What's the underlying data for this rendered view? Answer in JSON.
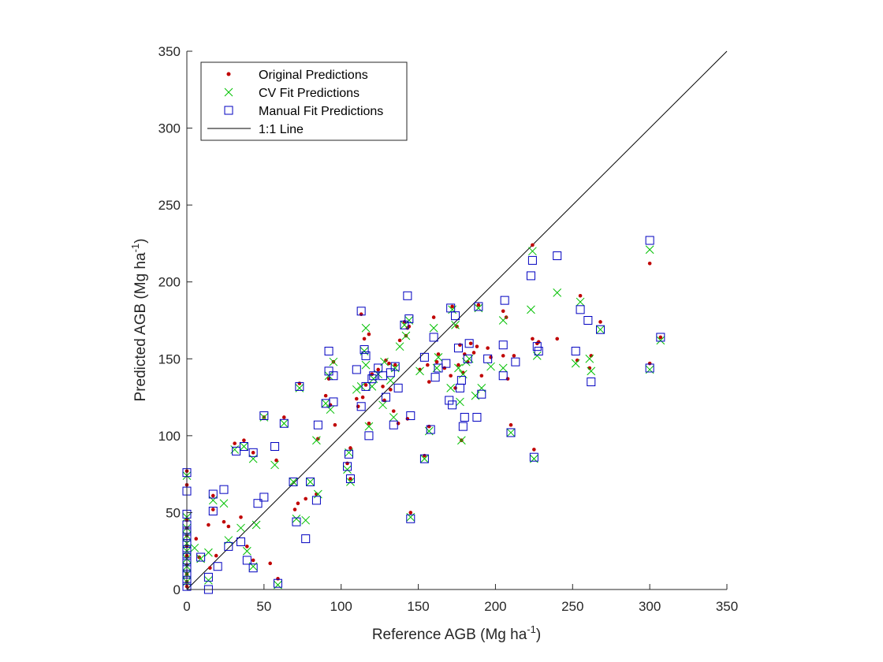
{
  "chart_data": {
    "type": "scatter",
    "title": "",
    "xlabel_main": "Reference AGB (Mg ha",
    "xlabel_sup": "-1",
    "xlabel_end": ")",
    "ylabel_main": "Predicted AGB (Mg ha",
    "ylabel_sup": "-1",
    "ylabel_end": ")",
    "xlim": [
      0,
      350
    ],
    "ylim": [
      0,
      350
    ],
    "xticks": [
      "0",
      "50",
      "100",
      "150",
      "200",
      "250",
      "300",
      "350"
    ],
    "yticks": [
      "0",
      "50",
      "100",
      "150",
      "200",
      "250",
      "300",
      "350"
    ],
    "grid": false,
    "legend_position": "top-left",
    "series": [
      {
        "name": "Original Predictions",
        "marker": "dot",
        "color": "#c00000",
        "points": [
          [
            0,
            77
          ],
          [
            0,
            68
          ],
          [
            0,
            45
          ],
          [
            0,
            40
          ],
          [
            0,
            35
          ],
          [
            0,
            28
          ],
          [
            0,
            22
          ],
          [
            0,
            16
          ],
          [
            0,
            10
          ],
          [
            0,
            5
          ],
          [
            0,
            2
          ],
          [
            6,
            33
          ],
          [
            8,
            21
          ],
          [
            14,
            42
          ],
          [
            15,
            14
          ],
          [
            17,
            52
          ],
          [
            17,
            61
          ],
          [
            19,
            22
          ],
          [
            24,
            44
          ],
          [
            27,
            41
          ],
          [
            31,
            95
          ],
          [
            35,
            47
          ],
          [
            37,
            97
          ],
          [
            39,
            28
          ],
          [
            43,
            19
          ],
          [
            43,
            89
          ],
          [
            50,
            112
          ],
          [
            54,
            17
          ],
          [
            58,
            84
          ],
          [
            59,
            7
          ],
          [
            63,
            112
          ],
          [
            70,
            52
          ],
          [
            72,
            56
          ],
          [
            73,
            134
          ],
          [
            77,
            59
          ],
          [
            84,
            62
          ],
          [
            85,
            98
          ],
          [
            90,
            126
          ],
          [
            92,
            137
          ],
          [
            93,
            120
          ],
          [
            95,
            148
          ],
          [
            96,
            107
          ],
          [
            104,
            82
          ],
          [
            106,
            72
          ],
          [
            106,
            92
          ],
          [
            110,
            124
          ],
          [
            111,
            119
          ],
          [
            113,
            179
          ],
          [
            114,
            125
          ],
          [
            115,
            163
          ],
          [
            116,
            133
          ],
          [
            118,
            108
          ],
          [
            118,
            166
          ],
          [
            120,
            140
          ],
          [
            124,
            143
          ],
          [
            127,
            132
          ],
          [
            128,
            123
          ],
          [
            129,
            149
          ],
          [
            131,
            147
          ],
          [
            132,
            130
          ],
          [
            134,
            116
          ],
          [
            135,
            146
          ],
          [
            137,
            108
          ],
          [
            138,
            162
          ],
          [
            141,
            174
          ],
          [
            142,
            165
          ],
          [
            143,
            170
          ],
          [
            143,
            111
          ],
          [
            144,
            171
          ],
          [
            145,
            50
          ],
          [
            151,
            143
          ],
          [
            154,
            87
          ],
          [
            156,
            146
          ],
          [
            157,
            135
          ],
          [
            157,
            106
          ],
          [
            160,
            177
          ],
          [
            162,
            148
          ],
          [
            163,
            153
          ],
          [
            167,
            144
          ],
          [
            171,
            139
          ],
          [
            172,
            184
          ],
          [
            174,
            131
          ],
          [
            175,
            171
          ],
          [
            176,
            146
          ],
          [
            177,
            159
          ],
          [
            178,
            97
          ],
          [
            179,
            141
          ],
          [
            180,
            153
          ],
          [
            182,
            148
          ],
          [
            184,
            160
          ],
          [
            186,
            154
          ],
          [
            188,
            158
          ],
          [
            189,
            185
          ],
          [
            191,
            139
          ],
          [
            195,
            157
          ],
          [
            197,
            151
          ],
          [
            205,
            181
          ],
          [
            205,
            152
          ],
          [
            207,
            177
          ],
          [
            208,
            137
          ],
          [
            210,
            107
          ],
          [
            212,
            152
          ],
          [
            224,
            224
          ],
          [
            224,
            163
          ],
          [
            225,
            91
          ],
          [
            227,
            160
          ],
          [
            228,
            161
          ],
          [
            240,
            163
          ],
          [
            253,
            149
          ],
          [
            255,
            191
          ],
          [
            261,
            144
          ],
          [
            262,
            152
          ],
          [
            268,
            174
          ],
          [
            300,
            147
          ],
          [
            300,
            212
          ],
          [
            307,
            164
          ]
        ]
      },
      {
        "name": "CV Fit Predictions",
        "marker": "x",
        "color": "#00c000",
        "points": [
          [
            0,
            74
          ],
          [
            0,
            47
          ],
          [
            0,
            40
          ],
          [
            0,
            35
          ],
          [
            0,
            30
          ],
          [
            0,
            25
          ],
          [
            0,
            20
          ],
          [
            0,
            15
          ],
          [
            0,
            10
          ],
          [
            0,
            5
          ],
          [
            5,
            27
          ],
          [
            9,
            20
          ],
          [
            14,
            24
          ],
          [
            14,
            6
          ],
          [
            17,
            58
          ],
          [
            24,
            56
          ],
          [
            27,
            32
          ],
          [
            31,
            91
          ],
          [
            35,
            40
          ],
          [
            37,
            93
          ],
          [
            39,
            25
          ],
          [
            43,
            15
          ],
          [
            43,
            85
          ],
          [
            45,
            42
          ],
          [
            50,
            112
          ],
          [
            57,
            81
          ],
          [
            59,
            3
          ],
          [
            63,
            108
          ],
          [
            69,
            70
          ],
          [
            71,
            46
          ],
          [
            73,
            131
          ],
          [
            77,
            45
          ],
          [
            80,
            70
          ],
          [
            84,
            97
          ],
          [
            85,
            62
          ],
          [
            90,
            121
          ],
          [
            92,
            139
          ],
          [
            93,
            117
          ],
          [
            95,
            148
          ],
          [
            104,
            78
          ],
          [
            105,
            89
          ],
          [
            106,
            70
          ],
          [
            110,
            130
          ],
          [
            113,
            132
          ],
          [
            115,
            155
          ],
          [
            116,
            170
          ],
          [
            116,
            146
          ],
          [
            118,
            106
          ],
          [
            120,
            132
          ],
          [
            121,
            137
          ],
          [
            124,
            140
          ],
          [
            127,
            120
          ],
          [
            128,
            148
          ],
          [
            132,
            136
          ],
          [
            134,
            112
          ],
          [
            135,
            144
          ],
          [
            138,
            158
          ],
          [
            141,
            172
          ],
          [
            142,
            165
          ],
          [
            144,
            175
          ],
          [
            145,
            47
          ],
          [
            151,
            142
          ],
          [
            154,
            85
          ],
          [
            157,
            103
          ],
          [
            160,
            170
          ],
          [
            162,
            144
          ],
          [
            163,
            151
          ],
          [
            171,
            131
          ],
          [
            172,
            182
          ],
          [
            174,
            172
          ],
          [
            176,
            144
          ],
          [
            177,
            122
          ],
          [
            178,
            97
          ],
          [
            179,
            140
          ],
          [
            181,
            148
          ],
          [
            183,
            150
          ],
          [
            187,
            126
          ],
          [
            189,
            183
          ],
          [
            191,
            131
          ],
          [
            197,
            145
          ],
          [
            205,
            175
          ],
          [
            205,
            144
          ],
          [
            210,
            102
          ],
          [
            223,
            182
          ],
          [
            224,
            220
          ],
          [
            225,
            85
          ],
          [
            227,
            152
          ],
          [
            240,
            193
          ],
          [
            252,
            147
          ],
          [
            255,
            187
          ],
          [
            261,
            150
          ],
          [
            262,
            142
          ],
          [
            268,
            169
          ],
          [
            300,
            143
          ],
          [
            300,
            221
          ],
          [
            307,
            162
          ]
        ]
      },
      {
        "name": "Manual Fit Predictions",
        "marker": "square",
        "color": "#0000c0",
        "points": [
          [
            0,
            76
          ],
          [
            0,
            64
          ],
          [
            0,
            49
          ],
          [
            0,
            42
          ],
          [
            0,
            38
          ],
          [
            0,
            34
          ],
          [
            0,
            30
          ],
          [
            0,
            26
          ],
          [
            0,
            22
          ],
          [
            0,
            18
          ],
          [
            0,
            14
          ],
          [
            0,
            10
          ],
          [
            0,
            6
          ],
          [
            0,
            2
          ],
          [
            9,
            21
          ],
          [
            14,
            8
          ],
          [
            14,
            0
          ],
          [
            17,
            51
          ],
          [
            17,
            62
          ],
          [
            20,
            15
          ],
          [
            24,
            65
          ],
          [
            27,
            28
          ],
          [
            32,
            90
          ],
          [
            35,
            31
          ],
          [
            37,
            93
          ],
          [
            39,
            19
          ],
          [
            43,
            89
          ],
          [
            43,
            14
          ],
          [
            46,
            56
          ],
          [
            50,
            60
          ],
          [
            50,
            113
          ],
          [
            57,
            93
          ],
          [
            59,
            4
          ],
          [
            63,
            108
          ],
          [
            69,
            70
          ],
          [
            71,
            44
          ],
          [
            73,
            132
          ],
          [
            77,
            33
          ],
          [
            80,
            70
          ],
          [
            84,
            58
          ],
          [
            85,
            107
          ],
          [
            90,
            121
          ],
          [
            92,
            155
          ],
          [
            92,
            142
          ],
          [
            95,
            139
          ],
          [
            95,
            122
          ],
          [
            104,
            80
          ],
          [
            105,
            88
          ],
          [
            106,
            72
          ],
          [
            110,
            143
          ],
          [
            113,
            181
          ],
          [
            113,
            119
          ],
          [
            115,
            156
          ],
          [
            116,
            152
          ],
          [
            116,
            132
          ],
          [
            118,
            100
          ],
          [
            120,
            137
          ],
          [
            121,
            139
          ],
          [
            124,
            144
          ],
          [
            127,
            139
          ],
          [
            129,
            125
          ],
          [
            132,
            141
          ],
          [
            134,
            107
          ],
          [
            135,
            145
          ],
          [
            137,
            131
          ],
          [
            141,
            172
          ],
          [
            143,
            191
          ],
          [
            144,
            176
          ],
          [
            145,
            46
          ],
          [
            145,
            113
          ],
          [
            154,
            151
          ],
          [
            154,
            85
          ],
          [
            158,
            104
          ],
          [
            160,
            164
          ],
          [
            161,
            138
          ],
          [
            163,
            144
          ],
          [
            168,
            147
          ],
          [
            170,
            123
          ],
          [
            171,
            183
          ],
          [
            172,
            120
          ],
          [
            174,
            178
          ],
          [
            176,
            157
          ],
          [
            177,
            131
          ],
          [
            178,
            136
          ],
          [
            179,
            106
          ],
          [
            180,
            112
          ],
          [
            182,
            150
          ],
          [
            183,
            160
          ],
          [
            188,
            112
          ],
          [
            189,
            184
          ],
          [
            191,
            127
          ],
          [
            195,
            150
          ],
          [
            205,
            159
          ],
          [
            205,
            139
          ],
          [
            206,
            188
          ],
          [
            210,
            102
          ],
          [
            213,
            148
          ],
          [
            223,
            204
          ],
          [
            224,
            214
          ],
          [
            225,
            86
          ],
          [
            227,
            158
          ],
          [
            228,
            155
          ],
          [
            240,
            217
          ],
          [
            252,
            155
          ],
          [
            255,
            182
          ],
          [
            260,
            175
          ],
          [
            262,
            135
          ],
          [
            268,
            169
          ],
          [
            300,
            227
          ],
          [
            300,
            144
          ],
          [
            307,
            164
          ]
        ]
      },
      {
        "name": "1:1 Line",
        "marker": "line",
        "color": "#000000",
        "points": [
          [
            0,
            0
          ],
          [
            350,
            350
          ]
        ]
      }
    ]
  }
}
